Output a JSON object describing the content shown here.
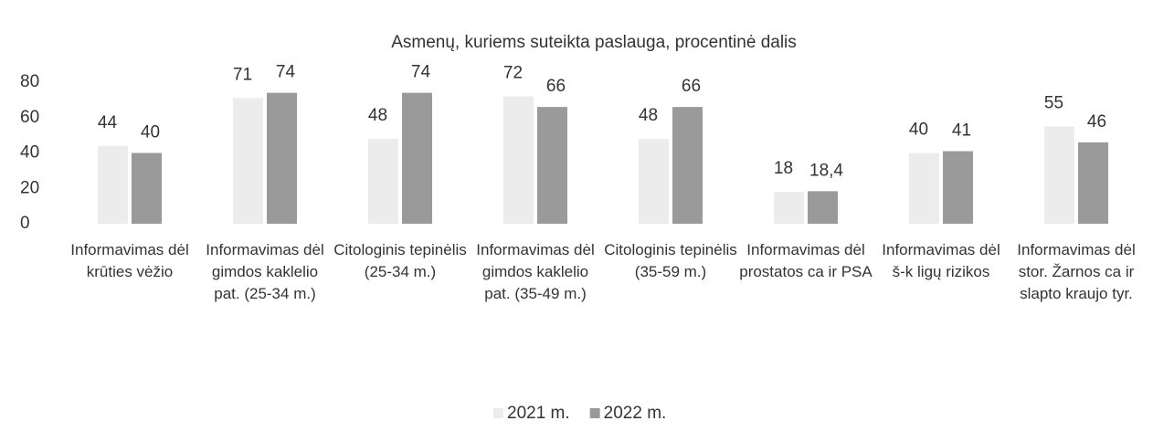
{
  "chart_data": {
    "type": "bar",
    "subtitle": "Asmenų, kuriems suteikta paslauga, procentinė dalis",
    "categories": [
      "Informavimas dėl krūties vėžio",
      "Informavimas dėl gimdos kaklelio pat. (25-34 m.)",
      "Citologinis tepinėlis (25-34 m.)",
      "Informavimas dėl gimdos kaklelio pat. (35-49 m.)",
      "Citologinis tepinėlis (35-59 m.)",
      "Informavimas dėl prostatos ca ir PSA",
      "Informavimas dėl š-k ligų rizikos",
      "Informavimas dėl stor. Žarnos ca ir slapto kraujo tyr."
    ],
    "series": [
      {
        "name": "2021 m.",
        "color": "#ececec",
        "values": [
          44,
          71,
          48,
          72,
          48,
          18,
          40,
          55
        ]
      },
      {
        "name": "2022 m.",
        "color": "#9a9a9a",
        "values": [
          40,
          74,
          74,
          66,
          66,
          18.4,
          41,
          46
        ],
        "value_labels": [
          "40",
          "74",
          "74",
          "66",
          "66",
          "18,4",
          "41",
          "46"
        ]
      }
    ],
    "ylim": [
      0,
      80
    ],
    "yticks": [
      0,
      20,
      40,
      60,
      80
    ],
    "grid": false,
    "legend": "bottom"
  }
}
